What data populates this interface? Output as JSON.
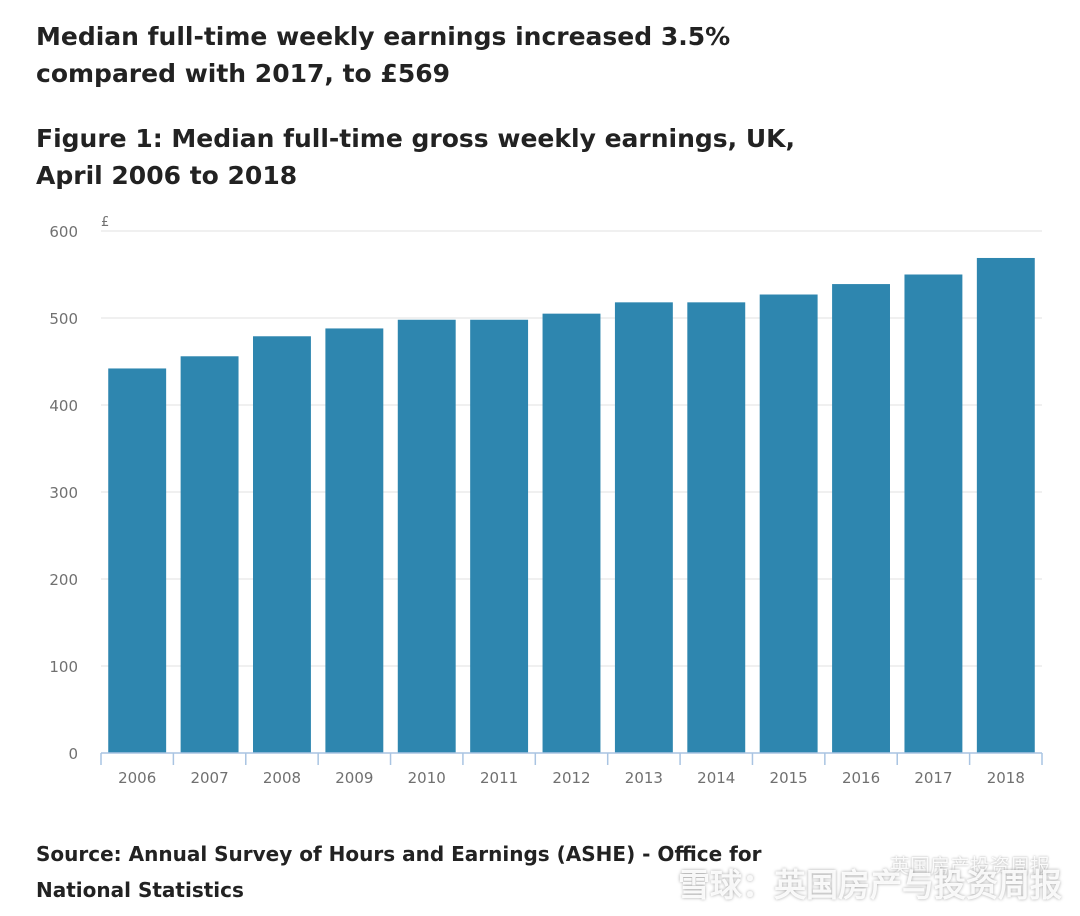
{
  "headline": "Median full-time weekly earnings increased 3.5% compared with 2017, to £569",
  "figure_title": "Figure 1: Median full-time gross weekly earnings, UK, April 2006 to 2018",
  "source": "Source: Annual Survey of Hours and Earnings (ASHE) - Office for National Statistics",
  "watermark": {
    "main": "雪球：英国房产与投资周报",
    "small": "英国房产投资周报"
  },
  "colors": {
    "bar": "#2E86AF",
    "grid": "#E2E2E2",
    "axis": "#A9C4E2",
    "tick_label": "#707070"
  },
  "chart_data": {
    "type": "bar",
    "title": "Figure 1: Median full-time gross weekly earnings, UK, April 2006 to 2018",
    "xlabel": "",
    "ylabel": "£",
    "ylim": [
      0,
      600
    ],
    "yticks": [
      0,
      100,
      200,
      300,
      400,
      500,
      600
    ],
    "grid": true,
    "categories": [
      "2006",
      "2007",
      "2008",
      "2009",
      "2010",
      "2011",
      "2012",
      "2013",
      "2014",
      "2015",
      "2016",
      "2017",
      "2018"
    ],
    "values": [
      442,
      456,
      479,
      488,
      498,
      498,
      505,
      518,
      518,
      527,
      539,
      550,
      569
    ]
  }
}
